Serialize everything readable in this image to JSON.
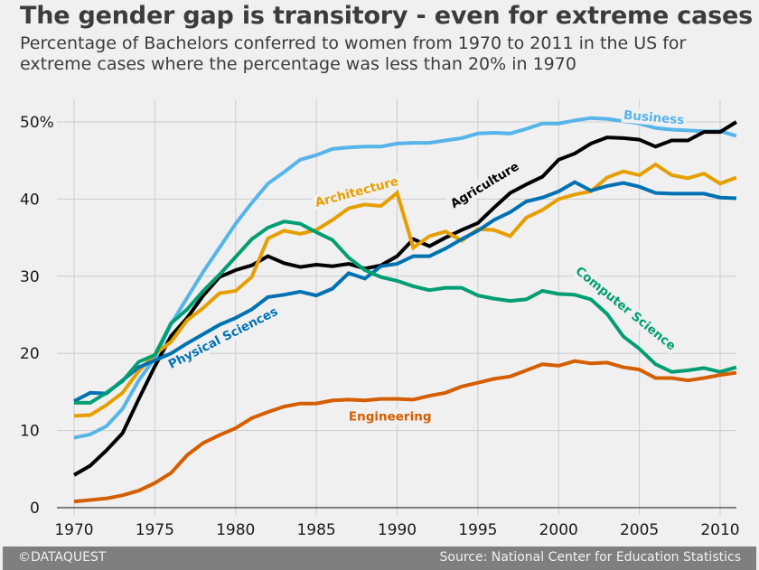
{
  "header": {
    "title": "The gender gap is transitory - even for extreme cases",
    "subtitle_line1": "Percentage of Bachelors conferred to women from 1970 to 2011 in the US for",
    "subtitle_line2": "extreme cases where the percentage was less than 20% in 1970"
  },
  "footer": {
    "left": "©DATAQUEST",
    "right": "Source: National Center for Education Statistics"
  },
  "chart_data": {
    "type": "line",
    "title": "The gender gap is transitory - even for extreme cases",
    "xlabel": "",
    "ylabel": "",
    "xlim": [
      1969,
      2011
    ],
    "ylim": [
      -2,
      53
    ],
    "grid": true,
    "x_ticks": [
      1970,
      1975,
      1980,
      1985,
      1990,
      1995,
      2000,
      2005,
      2010
    ],
    "y_ticks": [
      0,
      10,
      20,
      30,
      40,
      50
    ],
    "y_tick_labels": [
      "0",
      "10",
      "20",
      "30",
      "40",
      "50%"
    ],
    "x": [
      1970,
      1971,
      1972,
      1973,
      1974,
      1975,
      1976,
      1977,
      1978,
      1979,
      1980,
      1981,
      1982,
      1983,
      1984,
      1985,
      1986,
      1987,
      1988,
      1989,
      1990,
      1991,
      1992,
      1993,
      1994,
      1995,
      1996,
      1997,
      1998,
      1999,
      2000,
      2001,
      2002,
      2003,
      2004,
      2005,
      2006,
      2007,
      2008,
      2009,
      2010,
      2011
    ],
    "series": [
      {
        "name": "Business",
        "color": "#56b4e9",
        "label": "Business",
        "values": [
          9.06,
          9.5,
          10.56,
          12.8,
          16.5,
          19.4,
          23.8,
          27.2,
          30.6,
          33.7,
          36.8,
          39.5,
          42.0,
          43.5,
          45.1,
          45.7,
          46.5,
          46.7,
          46.8,
          46.8,
          47.2,
          47.3,
          47.3,
          47.6,
          47.9,
          48.5,
          48.6,
          48.5,
          49.1,
          49.8,
          49.8,
          50.2,
          50.5,
          50.4,
          50.1,
          49.8,
          49.2,
          49.0,
          48.9,
          48.8,
          48.8,
          48.2
        ]
      },
      {
        "name": "Agriculture",
        "color": "#000000",
        "label": "Agriculture",
        "values": [
          4.23,
          5.45,
          7.42,
          9.65,
          14.07,
          18.33,
          22.25,
          24.6,
          27.5,
          29.9,
          30.8,
          31.4,
          32.6,
          31.7,
          31.2,
          31.5,
          31.3,
          31.6,
          31.0,
          31.4,
          32.6,
          34.8,
          33.9,
          35.0,
          36.0,
          36.9,
          38.9,
          40.8,
          41.9,
          42.9,
          45.1,
          45.9,
          47.2,
          48.0,
          47.9,
          47.7,
          46.8,
          47.6,
          47.6,
          48.7,
          48.7,
          50.0
        ]
      },
      {
        "name": "Architecture",
        "color": "#e69f00",
        "label": "Architecture",
        "values": [
          11.9,
          12.0,
          13.3,
          14.9,
          17.7,
          19.9,
          21.5,
          24.3,
          25.9,
          27.8,
          28.1,
          29.9,
          34.9,
          35.9,
          35.5,
          36.0,
          37.3,
          38.8,
          39.3,
          39.1,
          40.8,
          33.7,
          35.2,
          35.8,
          34.6,
          36.1,
          36.0,
          35.2,
          37.6,
          38.6,
          40.0,
          40.6,
          41.0,
          42.8,
          43.6,
          43.1,
          44.5,
          43.1,
          42.7,
          43.3,
          42.0,
          42.8
        ]
      },
      {
        "name": "Physical Sciences",
        "color": "#0072b2",
        "label": "Physical Sciences",
        "values": [
          13.8,
          14.9,
          14.8,
          16.5,
          18.2,
          19.1,
          20.0,
          21.3,
          22.5,
          23.7,
          24.6,
          25.7,
          27.3,
          27.6,
          28.0,
          27.5,
          28.4,
          30.4,
          29.7,
          31.3,
          31.6,
          32.6,
          32.6,
          33.6,
          34.8,
          35.9,
          37.3,
          38.3,
          39.7,
          40.2,
          41.0,
          42.2,
          41.1,
          41.7,
          42.1,
          41.6,
          40.8,
          40.7,
          40.7,
          40.7,
          40.2,
          40.1
        ]
      },
      {
        "name": "Computer Science",
        "color": "#009e73",
        "label": "Computer Science",
        "values": [
          13.6,
          13.6,
          14.9,
          16.4,
          18.9,
          19.8,
          23.9,
          25.7,
          28.1,
          30.2,
          32.5,
          34.8,
          36.3,
          37.1,
          36.8,
          35.7,
          34.7,
          32.4,
          30.8,
          29.9,
          29.4,
          28.7,
          28.2,
          28.5,
          28.5,
          27.5,
          27.1,
          26.8,
          27.0,
          28.1,
          27.7,
          27.6,
          27.0,
          25.1,
          22.2,
          20.6,
          18.6,
          17.6,
          17.8,
          18.1,
          17.6,
          18.2
        ]
      },
      {
        "name": "Engineering",
        "color": "#d55e00",
        "label": "Engineering",
        "values": [
          0.8,
          1.0,
          1.2,
          1.6,
          2.2,
          3.2,
          4.5,
          6.8,
          8.4,
          9.4,
          10.3,
          11.6,
          12.4,
          13.1,
          13.5,
          13.5,
          13.9,
          14.0,
          13.9,
          14.1,
          14.1,
          14.0,
          14.5,
          14.9,
          15.7,
          16.2,
          16.7,
          17.0,
          17.8,
          18.6,
          18.4,
          19.0,
          18.7,
          18.8,
          18.2,
          17.9,
          16.8,
          16.8,
          16.5,
          16.8,
          17.2,
          17.5
        ]
      }
    ],
    "annotations": [
      {
        "text": "Business",
        "series": "Business",
        "x": 2004.0,
        "y": 50.4,
        "rotation": 5
      },
      {
        "text": "Agriculture",
        "series": "Agriculture",
        "x": 1993.5,
        "y": 38.8,
        "rotation": -31
      },
      {
        "text": "Architecture",
        "series": "Architecture",
        "x": 1985.0,
        "y": 39.0,
        "rotation": -15
      },
      {
        "text": "Physical Sciences",
        "series": "Physical Sciences",
        "x": 1976.0,
        "y": 18.0,
        "rotation": -27
      },
      {
        "text": "Computer Science",
        "series": "Computer Science",
        "x": 2001.0,
        "y": 30.5,
        "rotation": 39
      },
      {
        "text": "Engineering",
        "series": "Engineering",
        "x": 1987.0,
        "y": 11.3,
        "rotation": 0
      }
    ],
    "legend": "none (inline labels)"
  }
}
